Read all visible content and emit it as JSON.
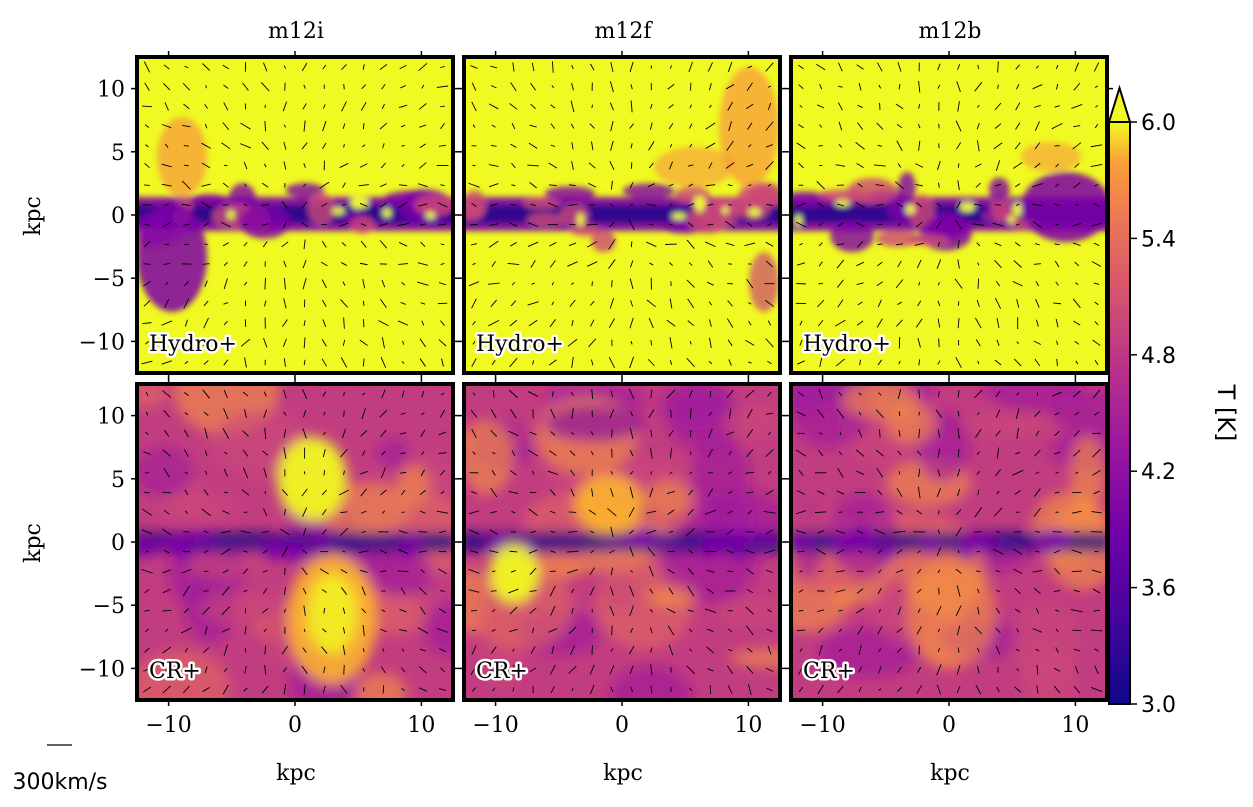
{
  "chart_data": {
    "type": "heatmap",
    "description_free": true,
    "columns": [
      "m12i",
      "m12f",
      "m12b"
    ],
    "rows": [
      "Hydro+",
      "CR+"
    ],
    "xlabel": "kpc",
    "ylabel": "kpc",
    "xlim": [
      -12.5,
      12.5
    ],
    "ylim": [
      -12.5,
      12.5
    ],
    "xticks": [
      -10,
      0,
      10
    ],
    "xtick_labels": [
      "−10",
      "0",
      "10"
    ],
    "yticks": [
      10,
      5,
      0,
      -5,
      -10
    ],
    "ytick_labels": [
      "10",
      "5",
      "0",
      "−5",
      "−10"
    ],
    "colorbar": {
      "label": "T [K]",
      "ticks": [
        6.0,
        5.4,
        4.8,
        4.2,
        3.6,
        3.0
      ],
      "tick_labels": [
        "6.0",
        "5.4",
        "4.8",
        "4.2",
        "3.6",
        "3.0"
      ],
      "range": [
        3.0,
        6.0
      ],
      "extend": "max",
      "colormap": "plasma"
    },
    "quiver_key": {
      "label": "300km/s"
    },
    "colors": {
      "hot": "#f0f921",
      "warm": "#f89540",
      "mid": "#cc4778",
      "cool": "#7e03a8",
      "cold": "#0d0887"
    }
  }
}
